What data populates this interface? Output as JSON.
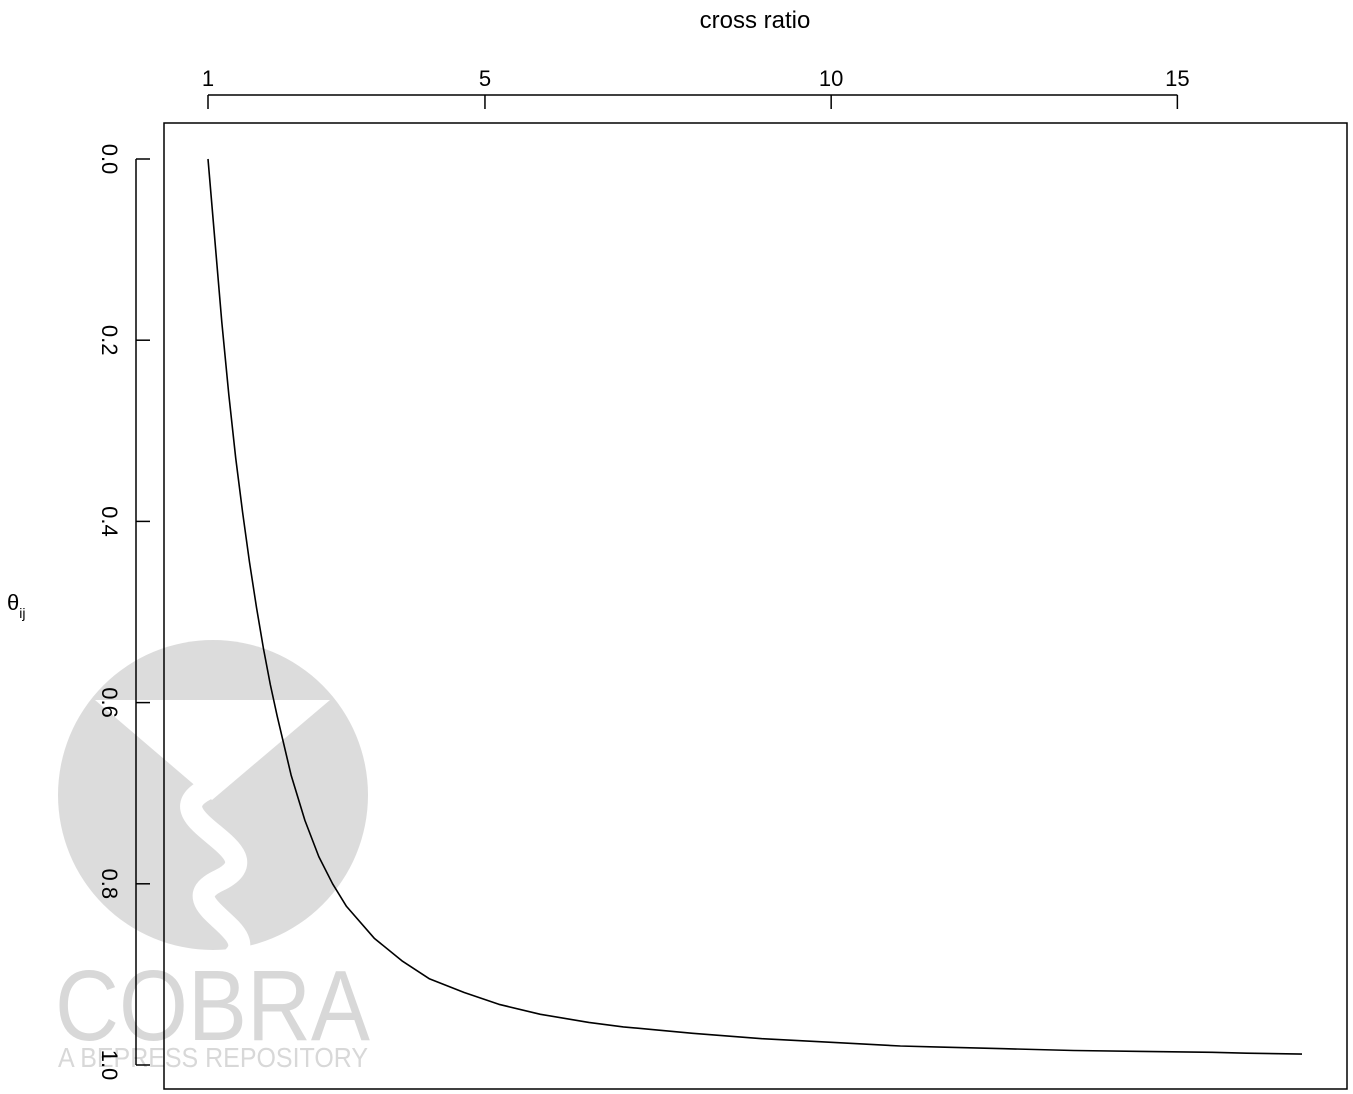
{
  "chart_data": {
    "type": "line",
    "title": "",
    "xlabel": "cross ratio",
    "ylabel": "θij",
    "ylabel_main": "θ",
    "ylabel_sub": "ij",
    "x_axis_position": "top",
    "y_axis_reversed": true,
    "grid": false,
    "xlim": [
      1,
      16.8
    ],
    "ylim": [
      0.0,
      1.0
    ],
    "x_ticks": [
      {
        "value": 1,
        "label": "1"
      },
      {
        "value": 5,
        "label": "5"
      },
      {
        "value": 10,
        "label": "10"
      },
      {
        "value": 15,
        "label": "15"
      }
    ],
    "y_ticks": [
      {
        "value": 0.0,
        "label": "0.0"
      },
      {
        "value": 0.2,
        "label": "0.2"
      },
      {
        "value": 0.4,
        "label": "0.4"
      },
      {
        "value": 0.6,
        "label": "0.6"
      },
      {
        "value": 0.8,
        "label": "0.8"
      },
      {
        "value": 1.0,
        "label": "1.0"
      }
    ],
    "series": [
      {
        "color": "#000000",
        "x": [
          1.0,
          1.1,
          1.2,
          1.3,
          1.4,
          1.5,
          1.6,
          1.7,
          1.8,
          1.9,
          2.0,
          2.2,
          2.4,
          2.6,
          2.8,
          3.0,
          3.4,
          3.8,
          4.2,
          4.7,
          5.2,
          5.8,
          6.5,
          7.0,
          8.0,
          9.0,
          10.0,
          11.0,
          11.5,
          12.5,
          13.5,
          14.5,
          15.5,
          16.0,
          16.8
        ],
        "y": [
          0.0,
          0.09,
          0.18,
          0.26,
          0.33,
          0.39,
          0.445,
          0.495,
          0.54,
          0.58,
          0.615,
          0.68,
          0.73,
          0.77,
          0.8,
          0.825,
          0.86,
          0.885,
          0.905,
          0.92,
          0.933,
          0.944,
          0.953,
          0.958,
          0.965,
          0.971,
          0.975,
          0.979,
          0.98,
          0.982,
          0.984,
          0.985,
          0.986,
          0.987,
          0.988
        ]
      }
    ]
  },
  "watermark": {
    "logo_text": "COBRA",
    "tagline": "A BEPRESS REPOSITORY",
    "color": "#d4d4d4"
  }
}
